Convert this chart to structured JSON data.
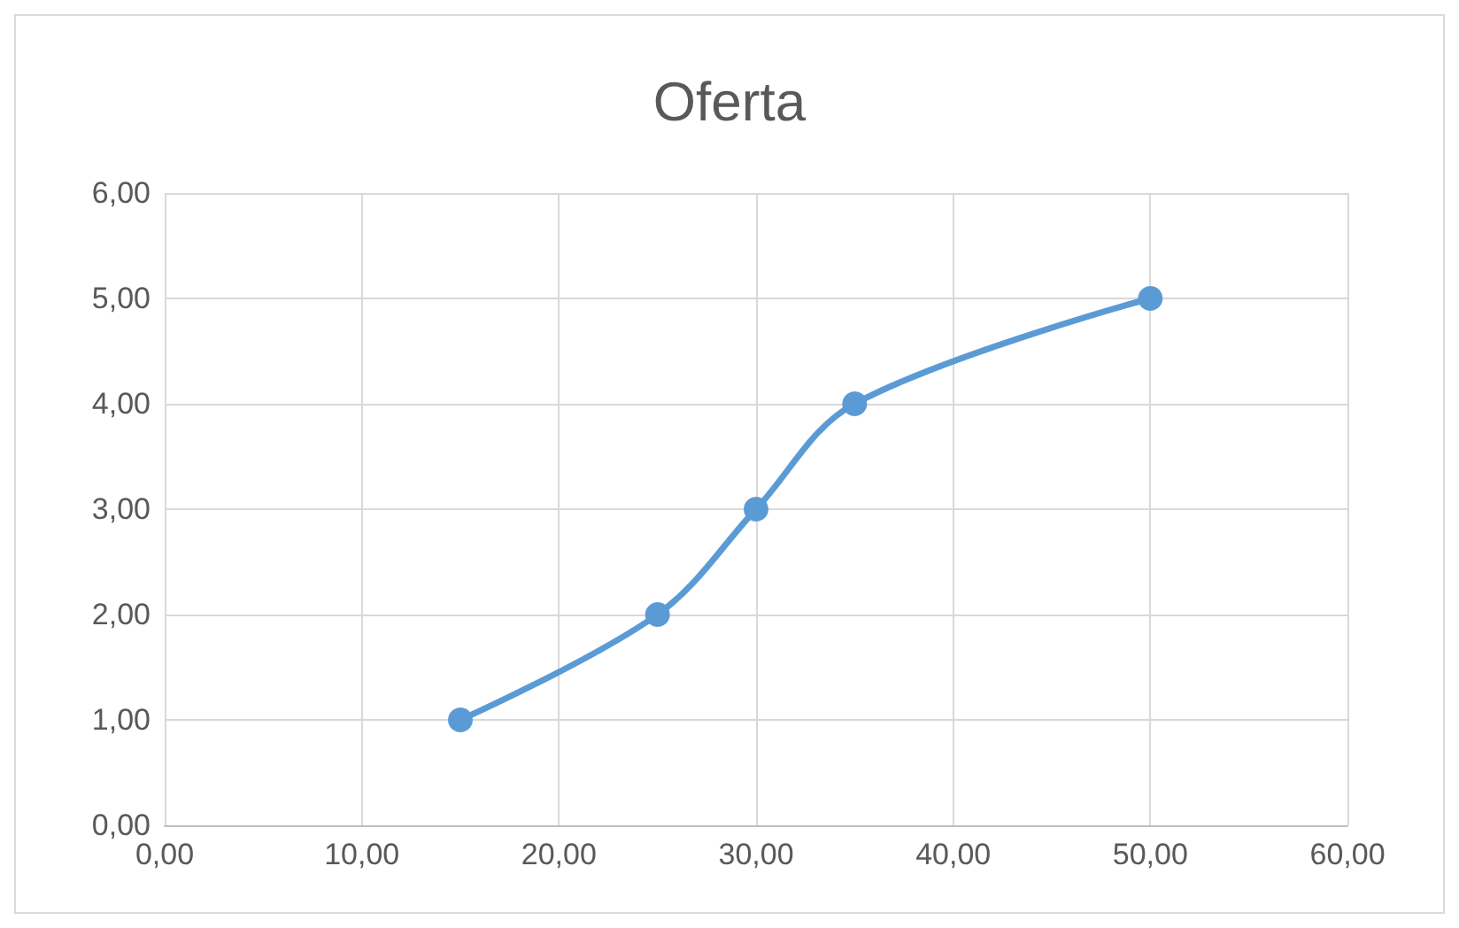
{
  "chart_data": {
    "type": "line",
    "title": "Oferta",
    "x": [
      15,
      25,
      30,
      35,
      50
    ],
    "series": [
      {
        "color": "#5b9bd5",
        "values": [
          1,
          2,
          3,
          4,
          5
        ]
      }
    ],
    "xlim": [
      0,
      60
    ],
    "ylim": [
      0,
      6
    ],
    "xticks": [
      {
        "value": 0,
        "label": "0,00"
      },
      {
        "value": 10,
        "label": "10,00"
      },
      {
        "value": 20,
        "label": "20,00"
      },
      {
        "value": 30,
        "label": "30,00"
      },
      {
        "value": 40,
        "label": "40,00"
      },
      {
        "value": 50,
        "label": "50,00"
      },
      {
        "value": 60,
        "label": "60,00"
      }
    ],
    "yticks": [
      {
        "value": 0,
        "label": "0,00"
      },
      {
        "value": 1,
        "label": "1,00"
      },
      {
        "value": 2,
        "label": "2,00"
      },
      {
        "value": 3,
        "label": "3,00"
      },
      {
        "value": 4,
        "label": "4,00"
      },
      {
        "value": 5,
        "label": "5,00"
      },
      {
        "value": 6,
        "label": "6,00"
      }
    ],
    "grid": true,
    "marker": "circle",
    "line_style": "solid"
  }
}
